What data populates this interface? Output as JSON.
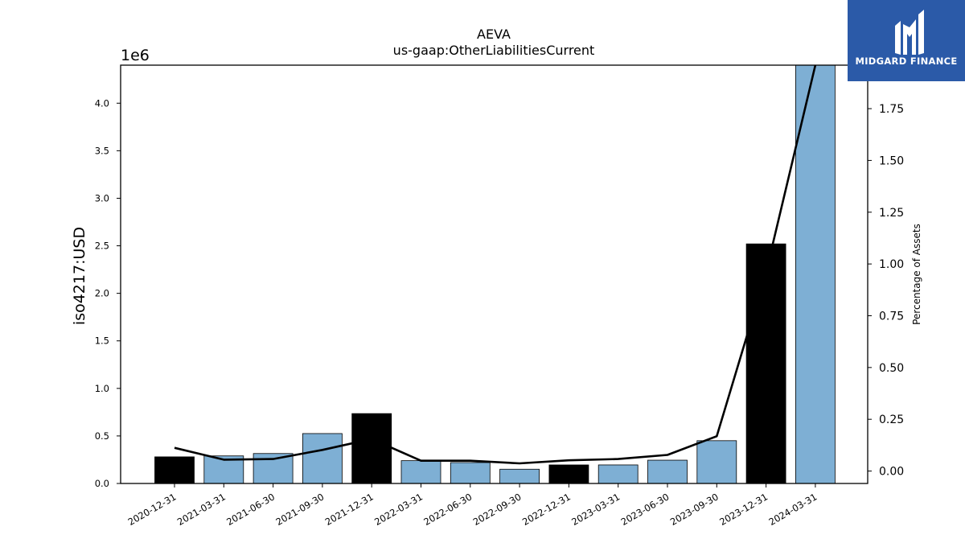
{
  "chart_data": {
    "type": "bar",
    "title": "AEVA",
    "subtitle": "us-gaap:OtherLiabilitiesCurrent",
    "ylabel": "iso4217:USD",
    "y_scale_label": "1e6",
    "y2label": "Percentage of Assets",
    "categories": [
      "2020-12-31",
      "2021-03-31",
      "2021-06-30",
      "2021-09-30",
      "2021-12-31",
      "2022-03-31",
      "2022-06-30",
      "2022-09-30",
      "2022-12-31",
      "2023-03-31",
      "2023-06-30",
      "2023-09-30",
      "2023-12-31",
      "2024-03-31"
    ],
    "values": [
      280000,
      290000,
      315000,
      525000,
      735000,
      240000,
      220000,
      150000,
      195000,
      195000,
      245000,
      450000,
      2520000,
      4400000
    ],
    "bar_colors": [
      "#000000",
      "#7eafd4",
      "#7eafd4",
      "#7eafd4",
      "#000000",
      "#7eafd4",
      "#7eafd4",
      "#7eafd4",
      "#000000",
      "#7eafd4",
      "#7eafd4",
      "#7eafd4",
      "#000000",
      "#7eafd4"
    ],
    "yticks": [
      "0.0",
      "0.5",
      "1.0",
      "1.5",
      "2.0",
      "2.5",
      "3.0",
      "3.5",
      "4.0"
    ],
    "ylim": [
      0,
      4.4
    ],
    "line_series": {
      "name": "Percentage of Assets",
      "values": [
        0.112,
        0.055,
        0.058,
        0.102,
        0.155,
        0.05,
        0.05,
        0.037,
        0.052,
        0.058,
        0.078,
        0.168,
        0.96,
        1.97
      ]
    },
    "y2ticks": [
      "0.00",
      "0.25",
      "0.50",
      "0.75",
      "1.00",
      "1.25",
      "1.50",
      "1.75"
    ],
    "y2lim": [
      -0.06,
      1.96
    ],
    "grid": false,
    "colors": {
      "bar_primary": "#7eafd4",
      "bar_highlight": "#000000",
      "line": "#000000"
    }
  },
  "logo": {
    "text": "MIDGARD FINANCE",
    "background": "#2b5aa8",
    "icon": "midgard-logo-icon"
  }
}
